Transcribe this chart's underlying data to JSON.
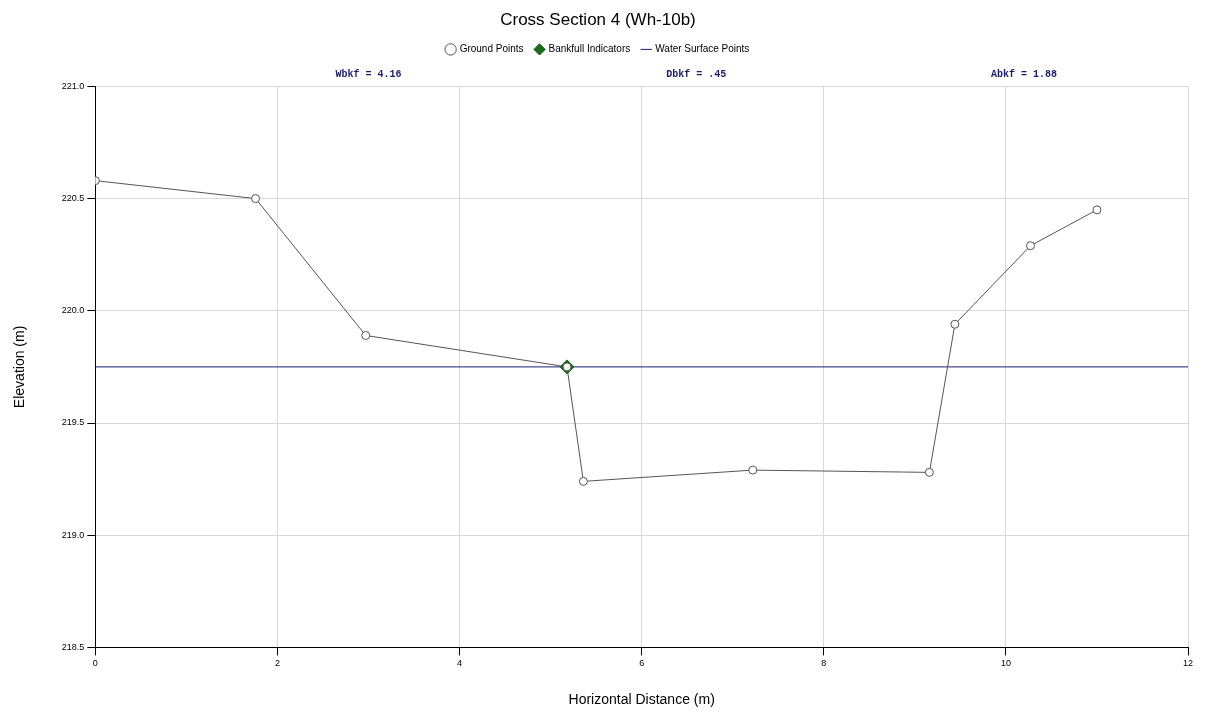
{
  "chart_data": {
    "type": "line",
    "title": "Cross Section 4 (Wh-10b)",
    "xlabel": "Horizontal Distance (m)",
    "ylabel": "Elevation (m)",
    "x": [
      0,
      1.76,
      2.97,
      5.18,
      5.36,
      7.22,
      9.16,
      9.44,
      10.27,
      11.0
    ],
    "series": [
      {
        "name": "Ground Points",
        "color": "#555555",
        "marker": "circle",
        "values": [
          220.58,
          220.5,
          219.89,
          219.75,
          219.24,
          219.29,
          219.28,
          219.94,
          220.29,
          220.45
        ]
      },
      {
        "name": "Bankfull Indicators",
        "type": "scatter",
        "color": "#1a6b1a",
        "marker": "diamond",
        "x": [
          5.18
        ],
        "values": [
          219.75
        ]
      },
      {
        "name": "Water Surface Points",
        "color": "#1c1c6e",
        "marker": "none",
        "x": [
          0,
          12
        ],
        "values": [
          219.75,
          219.75
        ]
      }
    ],
    "annotations": [
      "Wbkf = 4.16",
      "Dbkf = .45",
      "Abkf = 1.88"
    ],
    "xlim": [
      0,
      12
    ],
    "xticks": [
      0,
      2,
      4,
      6,
      8,
      10,
      12
    ],
    "ylim": [
      218.5,
      221
    ],
    "yticks": [
      {
        "value": 218.5,
        "label": "218.5"
      },
      {
        "value": 219,
        "label": "219.0"
      },
      {
        "value": 219.5,
        "label": "219.5"
      },
      {
        "value": 220,
        "label": "220.0"
      },
      {
        "value": 220.5,
        "label": "220.5"
      },
      {
        "value": 221,
        "label": "221.0"
      }
    ],
    "grid": true,
    "legend": "top"
  }
}
